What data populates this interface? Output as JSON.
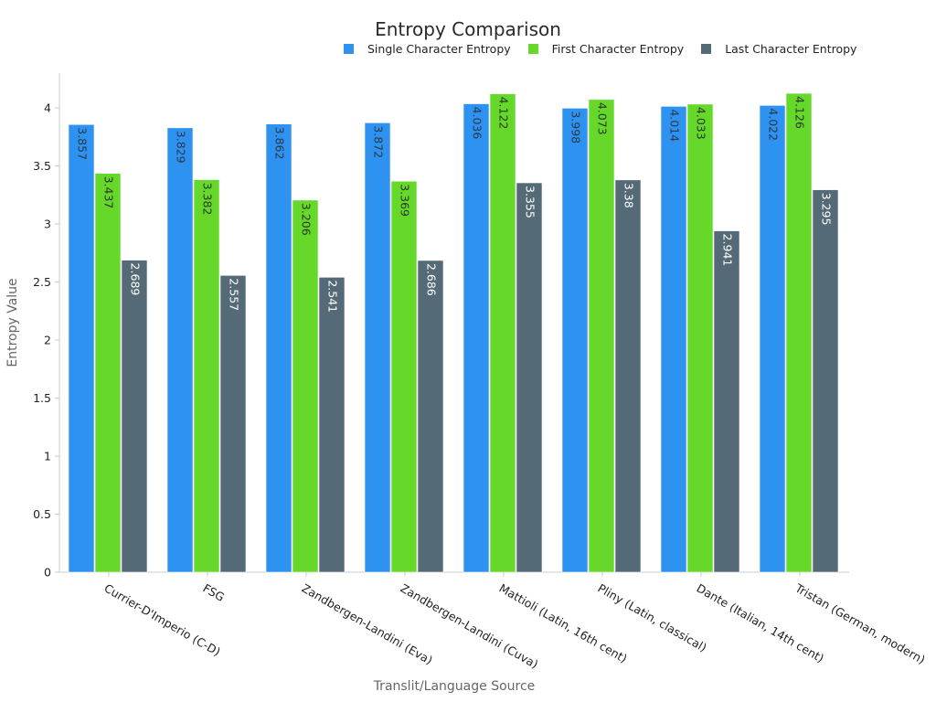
{
  "chart_data": {
    "type": "bar",
    "title": "Entropy Comparison",
    "xlabel": "Translit/Language Source",
    "ylabel": "Entropy Value",
    "ylim": [
      0,
      4.3
    ],
    "yticks": [
      0,
      0.5,
      1,
      1.5,
      2,
      2.5,
      3,
      3.5,
      4
    ],
    "ytick_labels": [
      "0",
      "0.5",
      "1",
      "1.5",
      "2",
      "2.5",
      "3",
      "3.5",
      "4"
    ],
    "grid": false,
    "legend_position": "top-right",
    "categories": [
      "Currier-D'Imperio (C-D)",
      "FSG",
      "Zandbergen-Landini (Eva)",
      "Zandbergen-Landini (Cuva)",
      "Mattioli (Latin, 16th cent)",
      "Pliny (Latin, classical)",
      "Dante (Italian, 14th cent)",
      "Tristan (German, modern)"
    ],
    "series": [
      {
        "name": "Single Character Entropy",
        "color": "#2e92f0",
        "label_color": "#2a3a4a",
        "values": [
          3.857,
          3.829,
          3.862,
          3.872,
          4.036,
          3.998,
          4.014,
          4.022
        ],
        "labels": [
          "3.857",
          "3.829",
          "3.862",
          "3.872",
          "4.036",
          "3.998",
          "4.014",
          "4.022"
        ]
      },
      {
        "name": "First Character Entropy",
        "color": "#66d82a",
        "label_color": "#2a3a2a",
        "values": [
          3.437,
          3.382,
          3.206,
          3.369,
          4.122,
          4.073,
          4.033,
          4.126
        ],
        "labels": [
          "3.437",
          "3.382",
          "3.206",
          "3.369",
          "4.122",
          "4.073",
          "4.033",
          "4.126"
        ]
      },
      {
        "name": "Last Character Entropy",
        "color": "#546a77",
        "label_color": "#ffffff",
        "values": [
          2.689,
          2.557,
          2.541,
          2.686,
          3.355,
          3.38,
          2.941,
          3.295
        ],
        "labels": [
          "2.689",
          "2.557",
          "2.541",
          "2.686",
          "3.355",
          "3.38",
          "2.941",
          "3.295"
        ]
      }
    ]
  }
}
